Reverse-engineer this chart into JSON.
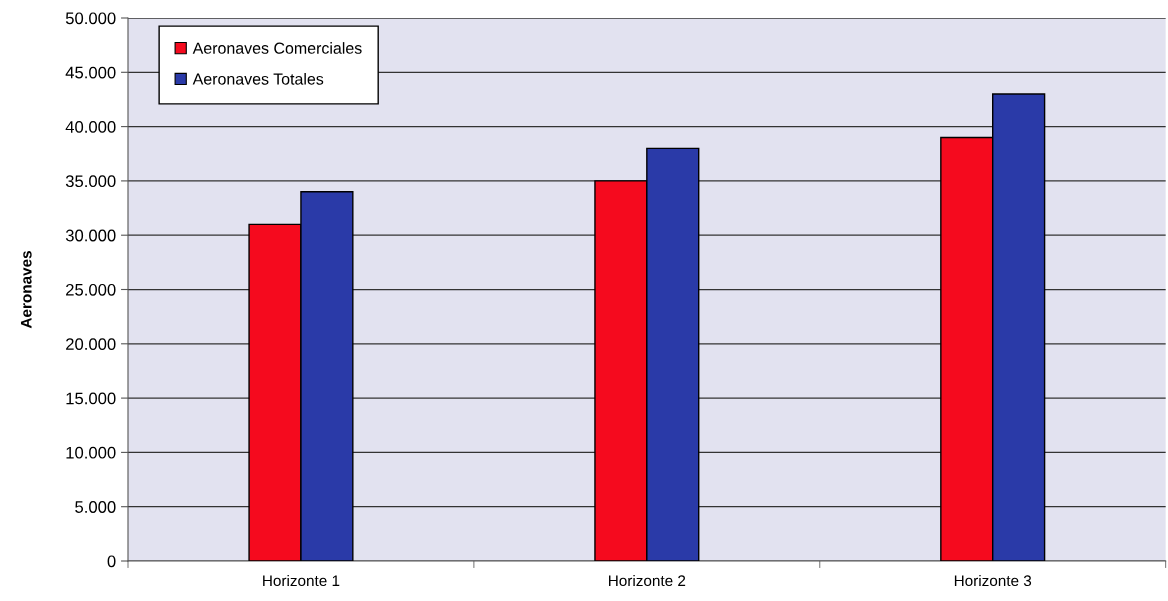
{
  "chart_data": {
    "type": "bar",
    "ylabel": "Aeronaves",
    "categories": [
      "Horizonte 1",
      "Horizonte 2",
      "Horizonte 3"
    ],
    "series": [
      {
        "name": "Aeronaves Comerciales",
        "color": "#f50a1e",
        "values": [
          31000,
          35000,
          39000
        ]
      },
      {
        "name": "Aeronaves Totales",
        "color": "#2a3aa8",
        "values": [
          34000,
          38000,
          43000
        ]
      }
    ],
    "ylim": [
      0,
      50000
    ],
    "yticks": [
      0,
      {
        "value": 5000,
        "label": "5.000"
      },
      {
        "value": 10000,
        "label": "10.000"
      },
      {
        "value": 15000,
        "label": "15.000"
      },
      {
        "value": 20000,
        "label": "20.000"
      },
      {
        "value": 25000,
        "label": "25.000"
      },
      {
        "value": 30000,
        "label": "30.000"
      },
      {
        "value": 35000,
        "label": "35.000"
      },
      {
        "value": 40000,
        "label": "40.000"
      },
      {
        "value": 45000,
        "label": "45.000"
      },
      {
        "value": 50000,
        "label": "50.000"
      }
    ],
    "grid": "y",
    "legend": "top left"
  }
}
